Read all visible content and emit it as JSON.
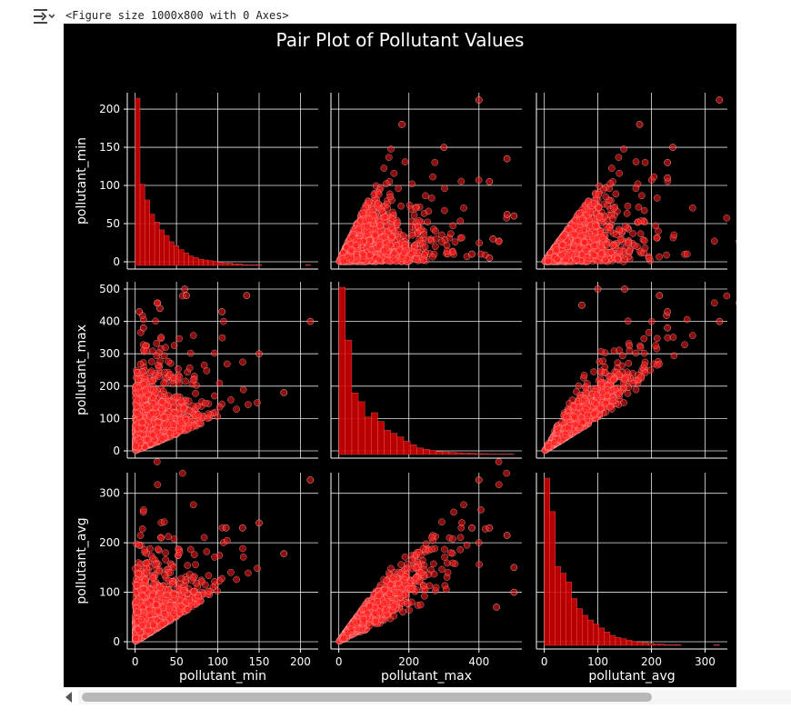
{
  "output": {
    "icon": "output-toggle-icon",
    "caption": "<Figure size 1000x800 with 0 Axes>"
  },
  "chart_data": {
    "type": "scatter",
    "title": "Pair Plot of Pollutant Values",
    "variables": [
      "pollutant_min",
      "pollutant_max",
      "pollutant_avg"
    ],
    "ranges": {
      "pollutant_min": [
        0,
        212
      ],
      "pollutant_max": [
        0,
        500
      ],
      "pollutant_avg": [
        0,
        327
      ]
    },
    "ticks": {
      "pollutant_min": [
        0,
        50,
        100,
        150,
        200
      ],
      "pollutant_max": [
        0,
        100,
        200,
        300,
        400,
        500
      ],
      "pollutant_avg": [
        0,
        100,
        200,
        300
      ]
    },
    "x_ticks": {
      "pollutant_min": [
        0,
        50,
        100,
        150,
        200
      ],
      "pollutant_max": [
        0,
        200,
        400
      ],
      "pollutant_avg": [
        0,
        100,
        200,
        300
      ]
    },
    "y_ticks": {
      "pollutant_min": [
        0,
        50,
        100,
        150,
        200
      ],
      "pollutant_max": [
        0,
        100,
        200,
        300,
        400,
        500
      ],
      "pollutant_avg": [
        0,
        100,
        200,
        300
      ]
    },
    "histograms": {
      "pollutant_min": {
        "bins": [
          0,
          212
        ],
        "counts": [
          212,
          103,
          83,
          65,
          55,
          45,
          38,
          30,
          25,
          20,
          16,
          12,
          10,
          8,
          7,
          6,
          5,
          4,
          3,
          3,
          2,
          2,
          1,
          1,
          1,
          1,
          0,
          0,
          0,
          0,
          0,
          0,
          0,
          0,
          0,
          1
        ]
      },
      "pollutant_max": {
        "bins": [
          0,
          500
        ],
        "counts": [
          380,
          260,
          140,
          120,
          85,
          95,
          75,
          55,
          48,
          40,
          30,
          22,
          15,
          12,
          9,
          7,
          6,
          5,
          4,
          3,
          3,
          2,
          2,
          1,
          1,
          1,
          1
        ]
      },
      "pollutant_avg": {
        "bins": [
          0,
          327
        ],
        "counts": [
          250,
          200,
          118,
          108,
          95,
          70,
          55,
          45,
          38,
          32,
          26,
          20,
          15,
          12,
          10,
          8,
          6,
          5,
          4,
          3,
          2,
          2,
          1,
          1,
          1,
          0,
          0,
          0,
          0,
          0,
          0,
          1
        ]
      }
    },
    "outliers": {
      "min_max": [
        [
          5,
          430
        ],
        [
          10,
          380
        ],
        [
          30,
          440
        ],
        [
          60,
          500
        ],
        [
          62,
          480
        ],
        [
          105,
          430
        ],
        [
          135,
          480
        ],
        [
          150,
          300
        ],
        [
          180,
          180
        ],
        [
          212,
          400
        ]
      ],
      "min_avg": [
        [
          5,
          195
        ],
        [
          180,
          178
        ],
        [
          212,
          327
        ],
        [
          150,
          240
        ],
        [
          130,
          230
        ],
        [
          110,
          230
        ]
      ],
      "max_avg": [
        [
          400,
          327
        ],
        [
          430,
          230
        ],
        [
          480,
          215
        ],
        [
          500,
          150
        ],
        [
          450,
          70
        ],
        [
          500,
          100
        ],
        [
          380,
          230
        ]
      ]
    },
    "grid": true,
    "theme": "dark_background",
    "marker_color": "#ff1a1a",
    "marker_edge": "#ffffff",
    "bar_color": "#cc0000"
  }
}
